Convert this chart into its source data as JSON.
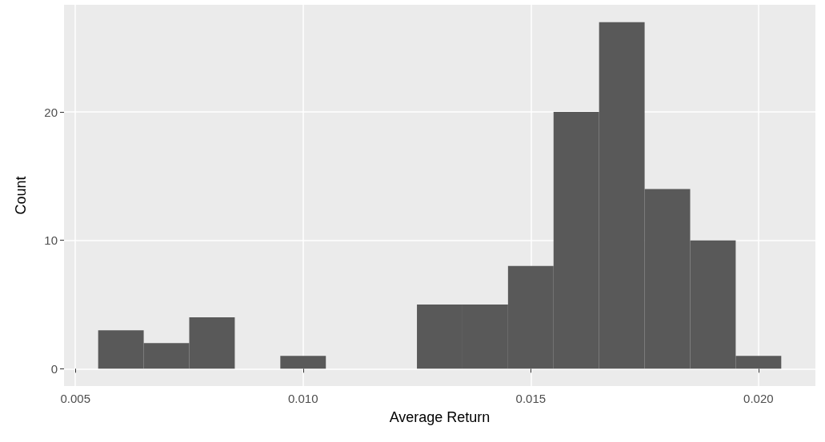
{
  "chart_data": {
    "type": "histogram",
    "xlabel": "Average Return",
    "ylabel": "Count",
    "bins": [
      0.0055,
      0.0065,
      0.0075,
      0.0085,
      0.0095,
      0.0105,
      0.0115,
      0.0125,
      0.0135,
      0.0145,
      0.0155,
      0.0165,
      0.0175,
      0.0185,
      0.0195,
      0.0205
    ],
    "values": [
      3,
      2,
      4,
      0,
      1,
      0,
      0,
      5,
      5,
      8,
      20,
      27,
      14,
      10,
      1
    ],
    "color": "#595959",
    "xlim": [
      0.00475,
      0.02125
    ],
    "xticks": [
      0.005,
      {
        "value": 0.01,
        "label": "0.010"
      },
      0.015,
      {
        "value": 0.02,
        "label": "0.020"
      }
    ],
    "ylim": [
      -1.35,
      28.35
    ],
    "yticks": [
      0,
      10,
      20
    ],
    "grid": true
  }
}
